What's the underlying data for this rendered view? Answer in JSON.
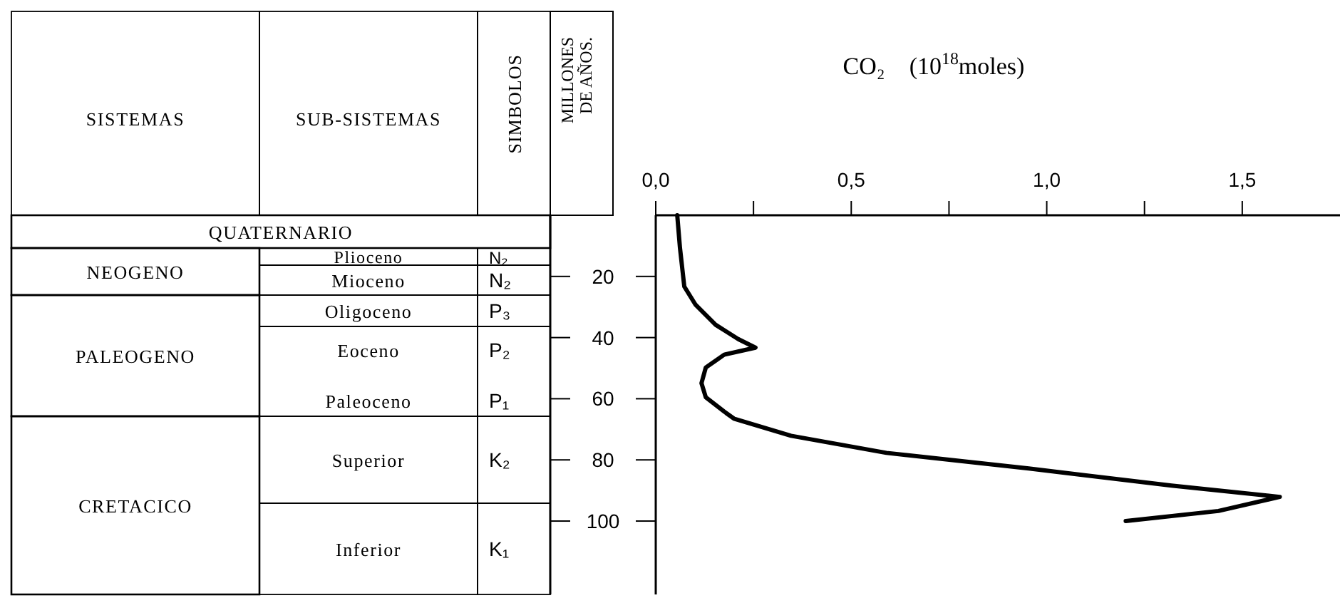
{
  "chart_data": [
    {
      "type": "other",
      "annotations": [
        "SISTEMAS",
        "SUB-SISTEMAS",
        "SIMBOLOS",
        "QUATERNARIO",
        "NEOGENO",
        "Plioceno",
        "N₂",
        "Mioceno",
        "N₂",
        "PALEOGENO",
        "Oligoceno",
        "P₃",
        "Eoceno",
        "P₂",
        "Paleoceno",
        "P₁",
        "CRETACICO",
        "Superior",
        "K₂",
        "Inferior",
        "K₁"
      ]
    },
    {
      "type": "line",
      "xlabel": "CO₂    (10$^{18}$moles)",
      "ylabel": "MILLONES DE AÑOS.",
      "xlim": [
        0,
        1.75
      ],
      "xticks": [
        {
          "value": 0,
          "label": "0,0"
        },
        {
          "value": 0.25,
          "label": null
        },
        {
          "value": 0.5,
          "label": "0,5"
        },
        {
          "value": 0.75,
          "label": null
        },
        {
          "value": 1,
          "label": "1,0"
        },
        {
          "value": 1.25,
          "label": null
        },
        {
          "value": 1.5,
          "label": "1,5"
        }
      ],
      "ylim": [
        124,
        0
      ],
      "yticks": [
        20,
        40,
        60,
        80,
        100
      ],
      "series": [
        {
          "color": "#000000",
          "x": [
            0.055,
            0.062,
            0.073,
            0.102,
            0.153,
            0.211,
            0.255,
            0.175,
            0.128,
            0.117,
            0.128,
            0.175,
            0.2,
            0.346,
            0.59,
            0.954,
            1.319,
            1.596,
            1.439,
            1.202
          ],
          "values": [
            0,
            10.7,
            23.3,
            29.3,
            35.8,
            40.5,
            43.3,
            45.6,
            49.8,
            54.9,
            59.5,
            64.2,
            66.5,
            72.1,
            77.7,
            82.8,
            88.4,
            92.1,
            96.7,
            100
          ]
        }
      ]
    }
  ]
}
